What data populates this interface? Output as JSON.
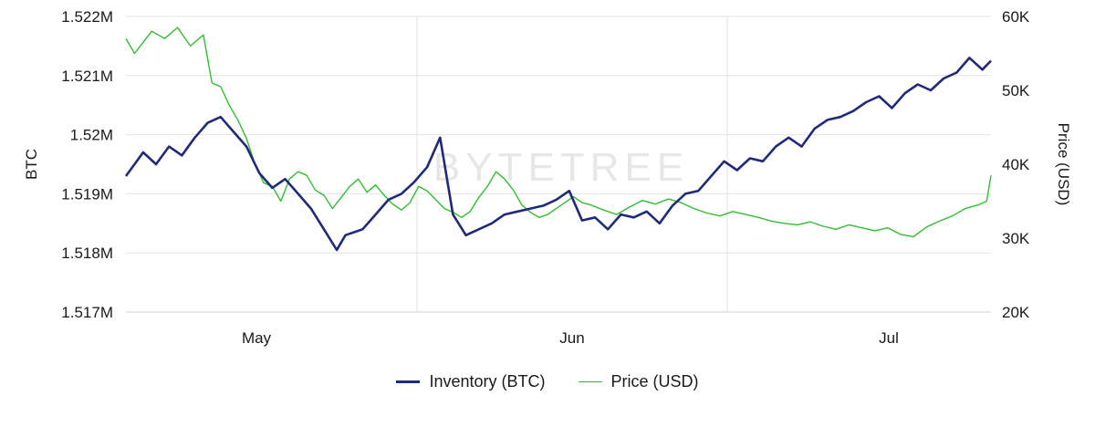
{
  "chart_data": {
    "type": "line",
    "watermark": "BYTETREE",
    "x_axis": {
      "tick_labels": [
        "May",
        "Jun",
        "Jul"
      ]
    },
    "y_left": {
      "label": "BTC",
      "ticks": [
        1517000,
        1518000,
        1519000,
        1520000,
        1521000,
        1522000
      ],
      "tick_labels": [
        "1.517M",
        "1.518M",
        "1.519M",
        "1.52M",
        "1.521M",
        "1.522M"
      ],
      "ylim": [
        1517000,
        1522000
      ]
    },
    "y_right": {
      "label": "Price (USD)",
      "ticks": [
        20000,
        30000,
        40000,
        50000,
        60000
      ],
      "tick_labels": [
        "20K",
        "30K",
        "40K",
        "50K",
        "60K"
      ],
      "ylim": [
        20000,
        60000
      ]
    },
    "grid": true,
    "legend_position": "bottom-center",
    "series": [
      {
        "name": "Inventory (BTC)",
        "axis": "left",
        "color": "#1f2a7a",
        "x": [
          0,
          4,
          7,
          10,
          13,
          16,
          19,
          22,
          25,
          28,
          31,
          34,
          37,
          40,
          43,
          46,
          49,
          51,
          53,
          55,
          58,
          61,
          64,
          67,
          70,
          73,
          76,
          79,
          82,
          85,
          88,
          91,
          94,
          97,
          100,
          103,
          106
        ],
        "values": [
          1519300,
          1519700,
          1519500,
          1519800,
          1519650,
          1519950,
          1520200,
          1520300,
          1520050,
          1519800,
          1519350,
          1519100,
          1519250,
          1519000,
          1518750,
          1518400,
          1518050,
          1518300,
          1518350,
          1518400,
          1518650,
          1518900,
          1519000,
          1519200,
          1519450,
          1519950,
          1518650,
          1518300,
          1518400,
          1518500,
          1518650,
          1518700,
          1518750,
          1518800,
          1518900,
          1519050,
          1518550
        ],
        "x2": [
          109,
          112,
          115,
          118,
          121,
          124,
          127,
          130,
          133,
          136,
          139,
          142,
          145,
          148,
          151,
          154,
          157,
          160,
          163,
          166,
          169,
          172,
          175,
          178,
          181,
          184,
          187,
          190,
          193,
          196,
          199,
          201
        ],
        "values2": [
          1518600,
          1518400,
          1518650,
          1518600,
          1518700,
          1518500,
          1518800,
          1519000,
          1519050,
          1519300,
          1519550,
          1519400,
          1519600,
          1519550,
          1519800,
          1519950,
          1519800,
          1520100,
          1520250,
          1520300,
          1520400,
          1520550,
          1520650,
          1520450,
          1520700,
          1520850,
          1520750,
          1520950,
          1521050,
          1521300,
          1521100,
          1521250
        ]
      },
      {
        "name": "Price (USD)",
        "axis": "right",
        "color": "#2fbf2f",
        "x": [
          0,
          2,
          4,
          6,
          9,
          12,
          15,
          18,
          20,
          22,
          24,
          26,
          28,
          30,
          32,
          34,
          36,
          38,
          40,
          42,
          44,
          46,
          48,
          50,
          52,
          54,
          56,
          58,
          60,
          62,
          64,
          66,
          68,
          70,
          72,
          74,
          76,
          78,
          80,
          82,
          84,
          86,
          88,
          90,
          92,
          94,
          96,
          98,
          100,
          102,
          104,
          106
        ],
        "values": [
          57000,
          55000,
          56500,
          58000,
          57000,
          58500,
          56000,
          57500,
          51000,
          50500,
          48000,
          46000,
          43500,
          40000,
          37500,
          37000,
          35000,
          38000,
          39000,
          38500,
          36500,
          35800,
          34000,
          35500,
          37000,
          38000,
          36200,
          37200,
          35800,
          34600,
          33800,
          34800,
          37000,
          36400,
          35200,
          34000,
          33500,
          32800,
          33600,
          35500,
          37000,
          39000,
          38000,
          36500,
          34500,
          33500,
          32800,
          33200,
          34000,
          34800,
          35600,
          34800
        ],
        "x2": [
          108,
          111,
          114,
          117,
          120,
          123,
          126,
          129,
          132,
          135,
          138,
          141,
          144,
          147,
          150,
          153,
          156,
          159,
          162,
          165,
          168,
          171,
          174,
          177,
          180,
          183,
          186,
          189,
          192,
          195,
          198,
          200,
          201
        ],
        "values2": [
          34500,
          33800,
          33200,
          34200,
          35100,
          34600,
          35300,
          34800,
          34000,
          33400,
          33000,
          33600,
          33200,
          32800,
          32300,
          32000,
          31800,
          32200,
          31600,
          31200,
          31800,
          31400,
          31000,
          31400,
          30500,
          30200,
          31500,
          32300,
          33000,
          34000,
          34500,
          35000,
          38500
        ]
      }
    ]
  }
}
